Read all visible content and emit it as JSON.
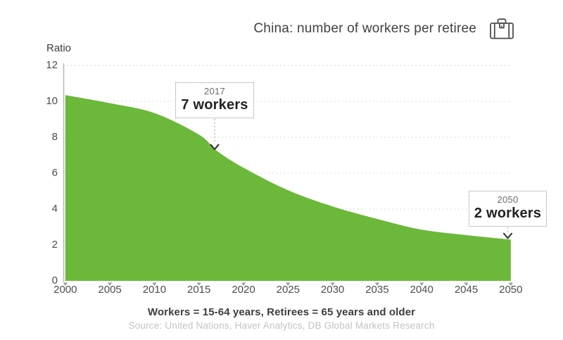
{
  "title": "China: number of workers per retiree",
  "y_axis": {
    "label": "Ratio",
    "ticks": [
      12,
      10,
      8,
      6,
      4,
      2,
      0
    ]
  },
  "x_axis": {
    "ticks": [
      "2000",
      "2005",
      "2010",
      "2015",
      "2020",
      "2025",
      "2030",
      "2035",
      "2040",
      "2045",
      "2050"
    ]
  },
  "footer": {
    "definition": "Workers = 15-64 years, Retirees = 65 years and older",
    "source": "Source: United Nations, Haver Analytics, DB Global Markets Research"
  },
  "colors": {
    "area": "#6cb83a",
    "grid": "#d8d8d8",
    "axis": "#b9b9b9",
    "tick_mark": "#9c9c9c",
    "connector": "#8f8f8f",
    "arrow": "#3c3c3c"
  },
  "chart_data": {
    "type": "area",
    "title": "China: number of workers per retiree",
    "ylabel": "Ratio",
    "ylim": [
      0,
      12
    ],
    "xlim": [
      2000,
      2050
    ],
    "grid": "horizontal-dotted",
    "legend": false,
    "x": [
      2000,
      2005,
      2010,
      2015,
      2017,
      2020,
      2025,
      2030,
      2035,
      2040,
      2045,
      2050
    ],
    "values": [
      10.35,
      9.9,
      9.35,
      8.15,
      7.25,
      6.3,
      5.05,
      4.15,
      3.45,
      2.85,
      2.55,
      2.3
    ],
    "annotations": [
      {
        "year": 2017,
        "year_label": "2017",
        "text": "7 workers",
        "value": 7
      },
      {
        "year": 2050,
        "year_label": "2050",
        "text": "2 workers",
        "value": 2
      }
    ]
  }
}
